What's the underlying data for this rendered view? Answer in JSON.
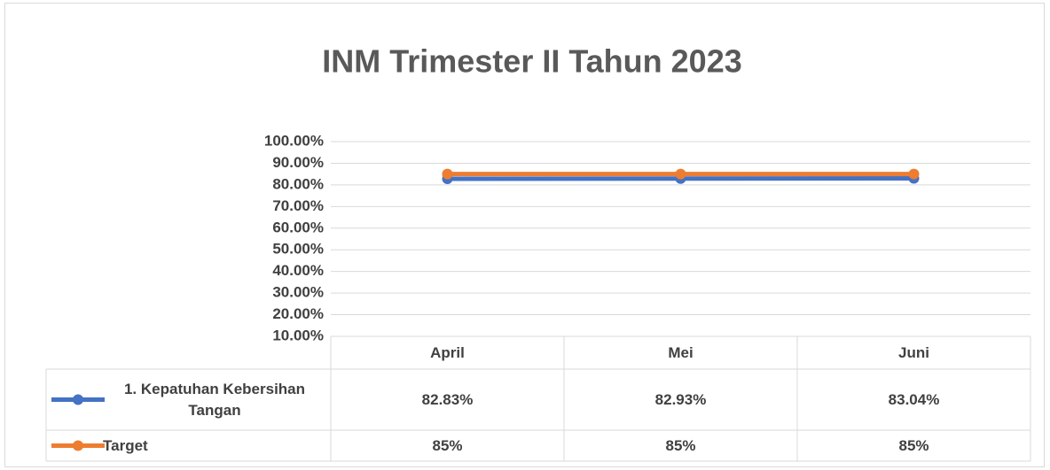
{
  "chart_data": {
    "type": "line",
    "title": "INM Trimester II Tahun 2023",
    "categories": [
      "April",
      "Mei",
      "Juni"
    ],
    "series": [
      {
        "name": "1. Kepatuhan Kebersihan Tangan",
        "color": "#4472c4",
        "values": [
          82.83,
          82.93,
          83.04
        ],
        "value_labels": [
          "82.83%",
          "82.93%",
          "83.04%"
        ]
      },
      {
        "name": "Target",
        "color": "#ed7d31",
        "values": [
          85,
          85,
          85
        ],
        "value_labels": [
          "85%",
          "85%",
          "85%"
        ]
      }
    ],
    "ylim": [
      10,
      100
    ],
    "yticks": [
      {
        "value": 10,
        "label": "10.00%"
      },
      {
        "value": 20,
        "label": "20.00%"
      },
      {
        "value": 30,
        "label": "30.00%"
      },
      {
        "value": 40,
        "label": "40.00%"
      },
      {
        "value": 50,
        "label": "50.00%"
      },
      {
        "value": 60,
        "label": "60.00%"
      },
      {
        "value": 70,
        "label": "70.00%"
      },
      {
        "value": 80,
        "label": "80.00%"
      },
      {
        "value": 90,
        "label": "90.00%"
      },
      {
        "value": 100,
        "label": "100.00%"
      }
    ],
    "grid": true,
    "data_table": true
  }
}
